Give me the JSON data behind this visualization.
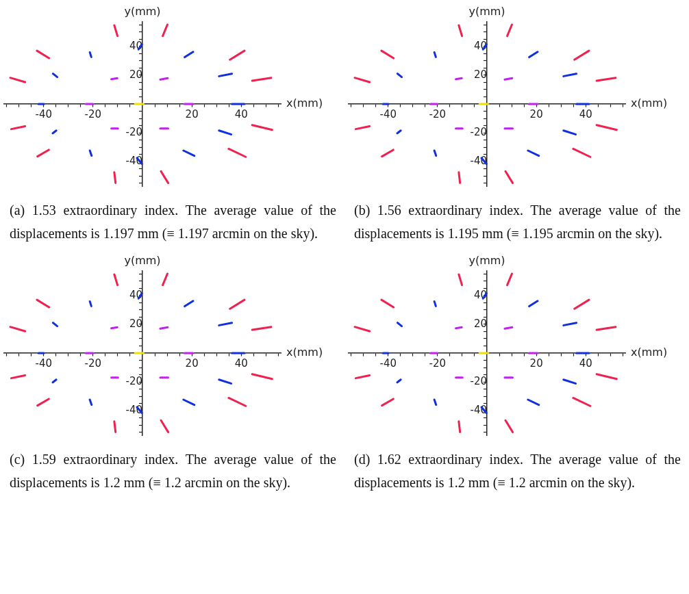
{
  "chart_data": [
    {
      "type": "line",
      "xlabel": "x(mm)",
      "ylabel": "y(mm)",
      "xlim": [
        -56,
        56
      ],
      "ylim": [
        -57,
        57
      ],
      "xticks": [
        {
          "value": -55,
          "label": null
        },
        {
          "value": -50,
          "label": null
        },
        {
          "value": -45,
          "label": null
        },
        -40,
        {
          "value": -35,
          "label": null
        },
        {
          "value": -30,
          "label": null
        },
        {
          "value": -25,
          "label": null
        },
        -20,
        {
          "value": -15,
          "label": null
        },
        {
          "value": -10,
          "label": null
        },
        {
          "value": -5,
          "label": null
        },
        {
          "value": 5,
          "label": null
        },
        {
          "value": 10,
          "label": null
        },
        {
          "value": 15,
          "label": null
        },
        20,
        {
          "value": 25,
          "label": null
        },
        {
          "value": 30,
          "label": null
        },
        {
          "value": 35,
          "label": null
        },
        40,
        {
          "value": 45,
          "label": null
        },
        {
          "value": 50,
          "label": null
        },
        {
          "value": 55,
          "label": null
        }
      ],
      "yticks": [
        {
          "value": -55,
          "label": null
        },
        {
          "value": -50,
          "label": null
        },
        {
          "value": -45,
          "label": null
        },
        -40,
        {
          "value": -35,
          "label": null
        },
        {
          "value": -30,
          "label": null
        },
        {
          "value": -25,
          "label": null
        },
        -20,
        {
          "value": -15,
          "label": null
        },
        {
          "value": -10,
          "label": null
        },
        {
          "value": -5,
          "label": null
        },
        {
          "value": 5,
          "label": null
        },
        {
          "value": 10,
          "label": null
        },
        {
          "value": 15,
          "label": null
        },
        20,
        {
          "value": 25,
          "label": null
        },
        {
          "value": 30,
          "label": null
        },
        {
          "value": 35,
          "label": null
        },
        40,
        {
          "value": 45,
          "label": null
        },
        {
          "value": 50,
          "label": null
        },
        {
          "value": 55,
          "label": null
        }
      ],
      "series": [
        {
          "color": "#f0204f",
          "x": [
            -11.4,
            -10.1,
            null,
            8.2,
            10.1,
            null,
            -42.7,
            -37.8,
            null,
            35.4,
            41.3,
            null,
            -53.5,
            -47.5,
            null,
            44.4,
            52.1,
            null,
            -53.1,
            -47.5,
            null,
            44.4,
            52.5,
            null,
            -42.5,
            -37.9,
            null,
            34.9,
            41.8,
            null,
            -11.4,
            -10.9,
            null,
            7.5,
            10.4
          ],
          "values": [
            54.6,
            47.2,
            null,
            47.2,
            55.1,
            null,
            37.0,
            31.8,
            null,
            30.8,
            37.0,
            null,
            18.2,
            15.2,
            null,
            16.1,
            18.2,
            null,
            -17.4,
            -15.4,
            null,
            -14.6,
            -17.9,
            null,
            -36.4,
            -31.8,
            null,
            -31.1,
            -36.7,
            null,
            -47.4,
            -54.8,
            null,
            -46.7,
            -54.8
          ]
        },
        {
          "color": "#1030e0",
          "x": [
            -21.3,
            -20.7,
            null,
            -1.6,
            -0.2,
            null,
            17.1,
            20.5,
            null,
            -36.2,
            -34.5,
            null,
            31.0,
            36.2,
            null,
            -42.1,
            -39.9,
            null,
            36.2,
            41.3,
            null,
            -36.3,
            -34.9,
            null,
            31.0,
            35.9,
            null,
            -21.3,
            -20.6,
            null,
            16.6,
            21.0,
            null,
            -2.2,
            -0.2
          ],
          "values": [
            35.9,
            32.6,
            null,
            37.9,
            41.5,
            null,
            32.5,
            36.2,
            null,
            21.1,
            18.7,
            null,
            19.3,
            21.0,
            null,
            0,
            0,
            null,
            0,
            0,
            null,
            -20.3,
            -18.4,
            null,
            -18.4,
            -21.1,
            null,
            -32.3,
            -35.9,
            null,
            -32.3,
            -35.9,
            null,
            -37.5,
            -41.6
          ]
        },
        {
          "color": "#c020f0",
          "x": [
            -12.6,
            -10.2,
            null,
            7.2,
            10.2,
            null,
            -22.9,
            -20.0,
            null,
            17.0,
            20.5,
            null,
            -12.6,
            -9.9,
            null,
            7.2,
            10.4
          ],
          "values": [
            17.2,
            17.9,
            null,
            17.0,
            17.9,
            null,
            0,
            0,
            null,
            0,
            0,
            null,
            -17.0,
            -17.0,
            null,
            -17.0,
            -17.0
          ]
        },
        {
          "color": "#f0e000",
          "x": [
            -3.0,
            0.4
          ],
          "values": [
            0,
            0
          ]
        }
      ],
      "annotations": [
        "(a) 1.53 extraordinary index. The average value of the displacements is 1.197 mm (≡ 1.197 arcmin on the sky)."
      ]
    },
    {
      "type": "line",
      "xlabel": "x(mm)",
      "ylabel": "y(mm)",
      "xlim": [
        -56,
        56
      ],
      "ylim": [
        -57,
        57
      ],
      "xticks": [
        {
          "value": -55,
          "label": null
        },
        {
          "value": -50,
          "label": null
        },
        {
          "value": -45,
          "label": null
        },
        -40,
        {
          "value": -35,
          "label": null
        },
        {
          "value": -30,
          "label": null
        },
        {
          "value": -25,
          "label": null
        },
        -20,
        {
          "value": -15,
          "label": null
        },
        {
          "value": -10,
          "label": null
        },
        {
          "value": -5,
          "label": null
        },
        {
          "value": 5,
          "label": null
        },
        {
          "value": 10,
          "label": null
        },
        {
          "value": 15,
          "label": null
        },
        20,
        {
          "value": 25,
          "label": null
        },
        {
          "value": 30,
          "label": null
        },
        {
          "value": 35,
          "label": null
        },
        40,
        {
          "value": 45,
          "label": null
        },
        {
          "value": 50,
          "label": null
        },
        {
          "value": 55,
          "label": null
        }
      ],
      "yticks": [
        {
          "value": -55,
          "label": null
        },
        {
          "value": -50,
          "label": null
        },
        {
          "value": -45,
          "label": null
        },
        -40,
        {
          "value": -35,
          "label": null
        },
        {
          "value": -30,
          "label": null
        },
        {
          "value": -25,
          "label": null
        },
        -20,
        {
          "value": -15,
          "label": null
        },
        {
          "value": -10,
          "label": null
        },
        {
          "value": -5,
          "label": null
        },
        {
          "value": 5,
          "label": null
        },
        {
          "value": 10,
          "label": null
        },
        {
          "value": 15,
          "label": null
        },
        20,
        {
          "value": 25,
          "label": null
        },
        {
          "value": 30,
          "label": null
        },
        {
          "value": 35,
          "label": null
        },
        40,
        {
          "value": 45,
          "label": null
        },
        {
          "value": 50,
          "label": null
        },
        {
          "value": 55,
          "label": null
        }
      ],
      "series": [
        {
          "color": "#f0204f",
          "x": [
            -11.4,
            -10.1,
            null,
            8.2,
            10.1,
            null,
            -42.7,
            -37.8,
            null,
            35.4,
            41.3,
            null,
            -53.5,
            -47.5,
            null,
            44.4,
            52.1,
            null,
            -53.1,
            -47.5,
            null,
            44.4,
            52.5,
            null,
            -42.5,
            -37.9,
            null,
            34.9,
            41.8,
            null,
            -11.4,
            -10.9,
            null,
            7.5,
            10.4
          ],
          "values": [
            54.6,
            47.2,
            null,
            47.2,
            55.1,
            null,
            37.0,
            31.8,
            null,
            30.8,
            37.0,
            null,
            18.2,
            15.2,
            null,
            16.1,
            18.2,
            null,
            -17.4,
            -15.4,
            null,
            -14.6,
            -17.9,
            null,
            -36.4,
            -31.8,
            null,
            -31.1,
            -36.7,
            null,
            -47.4,
            -54.8,
            null,
            -46.7,
            -54.8
          ]
        },
        {
          "color": "#1030e0",
          "x": [
            -21.3,
            -20.7,
            null,
            -1.6,
            -0.2,
            null,
            17.1,
            20.5,
            null,
            -36.2,
            -34.5,
            null,
            31.0,
            36.2,
            null,
            -42.1,
            -39.9,
            null,
            36.2,
            41.3,
            null,
            -36.3,
            -34.9,
            null,
            31.0,
            35.9,
            null,
            -21.3,
            -20.6,
            null,
            16.6,
            21.0,
            null,
            -2.2,
            -0.2
          ],
          "values": [
            35.9,
            32.6,
            null,
            37.9,
            41.5,
            null,
            32.5,
            36.2,
            null,
            21.1,
            18.7,
            null,
            19.3,
            21.0,
            null,
            0,
            0,
            null,
            0,
            0,
            null,
            -20.3,
            -18.4,
            null,
            -18.4,
            -21.1,
            null,
            -32.3,
            -35.9,
            null,
            -32.3,
            -35.9,
            null,
            -37.5,
            -41.6
          ]
        },
        {
          "color": "#c020f0",
          "x": [
            -12.6,
            -10.2,
            null,
            7.2,
            10.2,
            null,
            -22.9,
            -20.0,
            null,
            17.0,
            20.5,
            null,
            -12.6,
            -9.9,
            null,
            7.2,
            10.4
          ],
          "values": [
            17.2,
            17.9,
            null,
            17.0,
            17.9,
            null,
            0,
            0,
            null,
            0,
            0,
            null,
            -17.0,
            -17.0,
            null,
            -17.0,
            -17.0
          ]
        },
        {
          "color": "#f0e000",
          "x": [
            -3.0,
            0.4
          ],
          "values": [
            0,
            0
          ]
        }
      ],
      "annotations": [
        "(b) 1.56 extraordinary index. The average value of the displacements is 1.195 mm (≡ 1.195 arcmin on the sky)."
      ]
    },
    {
      "type": "line",
      "xlabel": "x(mm)",
      "ylabel": "y(mm)",
      "xlim": [
        -56,
        56
      ],
      "ylim": [
        -57,
        57
      ],
      "xticks": [
        {
          "value": -55,
          "label": null
        },
        {
          "value": -50,
          "label": null
        },
        {
          "value": -45,
          "label": null
        },
        -40,
        {
          "value": -35,
          "label": null
        },
        {
          "value": -30,
          "label": null
        },
        {
          "value": -25,
          "label": null
        },
        -20,
        {
          "value": -15,
          "label": null
        },
        {
          "value": -10,
          "label": null
        },
        {
          "value": -5,
          "label": null
        },
        {
          "value": 5,
          "label": null
        },
        {
          "value": 10,
          "label": null
        },
        {
          "value": 15,
          "label": null
        },
        20,
        {
          "value": 25,
          "label": null
        },
        {
          "value": 30,
          "label": null
        },
        {
          "value": 35,
          "label": null
        },
        40,
        {
          "value": 45,
          "label": null
        },
        {
          "value": 50,
          "label": null
        },
        {
          "value": 55,
          "label": null
        }
      ],
      "yticks": [
        {
          "value": -55,
          "label": null
        },
        {
          "value": -50,
          "label": null
        },
        {
          "value": -45,
          "label": null
        },
        -40,
        {
          "value": -35,
          "label": null
        },
        {
          "value": -30,
          "label": null
        },
        {
          "value": -25,
          "label": null
        },
        -20,
        {
          "value": -15,
          "label": null
        },
        {
          "value": -10,
          "label": null
        },
        {
          "value": -5,
          "label": null
        },
        {
          "value": 5,
          "label": null
        },
        {
          "value": 10,
          "label": null
        },
        {
          "value": 15,
          "label": null
        },
        20,
        {
          "value": 25,
          "label": null
        },
        {
          "value": 30,
          "label": null
        },
        {
          "value": 35,
          "label": null
        },
        40,
        {
          "value": 45,
          "label": null
        },
        {
          "value": 50,
          "label": null
        },
        {
          "value": 55,
          "label": null
        }
      ],
      "series": [
        {
          "color": "#f0204f",
          "x": [
            -11.4,
            -10.1,
            null,
            8.2,
            10.1,
            null,
            -42.7,
            -37.8,
            null,
            35.4,
            41.3,
            null,
            -53.5,
            -47.5,
            null,
            44.4,
            52.1,
            null,
            -53.1,
            -47.5,
            null,
            44.4,
            52.5,
            null,
            -42.5,
            -37.9,
            null,
            34.9,
            41.8,
            null,
            -11.4,
            -10.9,
            null,
            7.5,
            10.4
          ],
          "values": [
            54.6,
            47.2,
            null,
            47.2,
            55.1,
            null,
            37.0,
            31.8,
            null,
            30.8,
            37.0,
            null,
            18.2,
            15.2,
            null,
            16.1,
            18.2,
            null,
            -17.4,
            -15.4,
            null,
            -14.6,
            -17.9,
            null,
            -36.4,
            -31.8,
            null,
            -31.1,
            -36.7,
            null,
            -47.4,
            -54.8,
            null,
            -46.7,
            -54.8
          ]
        },
        {
          "color": "#1030e0",
          "x": [
            -21.3,
            -20.7,
            null,
            -1.6,
            -0.2,
            null,
            17.1,
            20.5,
            null,
            -36.2,
            -34.5,
            null,
            31.0,
            36.2,
            null,
            -42.1,
            -39.9,
            null,
            36.2,
            41.3,
            null,
            -36.3,
            -34.9,
            null,
            31.0,
            35.9,
            null,
            -21.3,
            -20.6,
            null,
            16.6,
            21.0,
            null,
            -2.2,
            -0.2
          ],
          "values": [
            35.9,
            32.6,
            null,
            37.9,
            41.5,
            null,
            32.5,
            36.2,
            null,
            21.1,
            18.7,
            null,
            19.3,
            21.0,
            null,
            0,
            0,
            null,
            0,
            0,
            null,
            -20.3,
            -18.4,
            null,
            -18.4,
            -21.1,
            null,
            -32.3,
            -35.9,
            null,
            -32.3,
            -35.9,
            null,
            -37.5,
            -41.6
          ]
        },
        {
          "color": "#c020f0",
          "x": [
            -12.6,
            -10.2,
            null,
            7.2,
            10.2,
            null,
            -22.9,
            -20.0,
            null,
            17.0,
            20.5,
            null,
            -12.6,
            -9.9,
            null,
            7.2,
            10.4
          ],
          "values": [
            17.2,
            17.9,
            null,
            17.0,
            17.9,
            null,
            0,
            0,
            null,
            0,
            0,
            null,
            -17.0,
            -17.0,
            null,
            -17.0,
            -17.0
          ]
        },
        {
          "color": "#f0e000",
          "x": [
            -3.0,
            0.4
          ],
          "values": [
            0,
            0
          ]
        }
      ],
      "annotations": [
        "(c) 1.59 extraordinary index. The average value of the displacements is 1.2 mm (≡ 1.2 arcmin on the sky)."
      ]
    },
    {
      "type": "line",
      "xlabel": "x(mm)",
      "ylabel": "y(mm)",
      "xlim": [
        -56,
        56
      ],
      "ylim": [
        -57,
        57
      ],
      "xticks": [
        {
          "value": -55,
          "label": null
        },
        {
          "value": -50,
          "label": null
        },
        {
          "value": -45,
          "label": null
        },
        -40,
        {
          "value": -35,
          "label": null
        },
        {
          "value": -30,
          "label": null
        },
        {
          "value": -25,
          "label": null
        },
        -20,
        {
          "value": -15,
          "label": null
        },
        {
          "value": -10,
          "label": null
        },
        {
          "value": -5,
          "label": null
        },
        {
          "value": 5,
          "label": null
        },
        {
          "value": 10,
          "label": null
        },
        {
          "value": 15,
          "label": null
        },
        20,
        {
          "value": 25,
          "label": null
        },
        {
          "value": 30,
          "label": null
        },
        {
          "value": 35,
          "label": null
        },
        40,
        {
          "value": 45,
          "label": null
        },
        {
          "value": 50,
          "label": null
        },
        {
          "value": 55,
          "label": null
        }
      ],
      "yticks": [
        {
          "value": -55,
          "label": null
        },
        {
          "value": -50,
          "label": null
        },
        {
          "value": -45,
          "label": null
        },
        -40,
        {
          "value": -35,
          "label": null
        },
        {
          "value": -30,
          "label": null
        },
        {
          "value": -25,
          "label": null
        },
        -20,
        {
          "value": -15,
          "label": null
        },
        {
          "value": -10,
          "label": null
        },
        {
          "value": -5,
          "label": null
        },
        {
          "value": 5,
          "label": null
        },
        {
          "value": 10,
          "label": null
        },
        {
          "value": 15,
          "label": null
        },
        20,
        {
          "value": 25,
          "label": null
        },
        {
          "value": 30,
          "label": null
        },
        {
          "value": 35,
          "label": null
        },
        40,
        {
          "value": 45,
          "label": null
        },
        {
          "value": 50,
          "label": null
        },
        {
          "value": 55,
          "label": null
        }
      ],
      "series": [
        {
          "color": "#f0204f",
          "x": [
            -11.4,
            -10.1,
            null,
            8.2,
            10.1,
            null,
            -42.7,
            -37.8,
            null,
            35.4,
            41.3,
            null,
            -53.5,
            -47.5,
            null,
            44.4,
            52.1,
            null,
            -53.1,
            -47.5,
            null,
            44.4,
            52.5,
            null,
            -42.5,
            -37.9,
            null,
            34.9,
            41.8,
            null,
            -11.4,
            -10.9,
            null,
            7.5,
            10.4
          ],
          "values": [
            54.6,
            47.2,
            null,
            47.2,
            55.1,
            null,
            37.0,
            31.8,
            null,
            30.8,
            37.0,
            null,
            18.2,
            15.2,
            null,
            16.1,
            18.2,
            null,
            -17.4,
            -15.4,
            null,
            -14.6,
            -17.9,
            null,
            -36.4,
            -31.8,
            null,
            -31.1,
            -36.7,
            null,
            -47.4,
            -54.8,
            null,
            -46.7,
            -54.8
          ]
        },
        {
          "color": "#1030e0",
          "x": [
            -21.3,
            -20.7,
            null,
            -1.6,
            -0.2,
            null,
            17.1,
            20.5,
            null,
            -36.2,
            -34.5,
            null,
            31.0,
            36.2,
            null,
            -42.1,
            -39.9,
            null,
            36.2,
            41.3,
            null,
            -36.3,
            -34.9,
            null,
            31.0,
            35.9,
            null,
            -21.3,
            -20.6,
            null,
            16.6,
            21.0,
            null,
            -2.2,
            -0.2
          ],
          "values": [
            35.9,
            32.6,
            null,
            37.9,
            41.5,
            null,
            32.5,
            36.2,
            null,
            21.1,
            18.7,
            null,
            19.3,
            21.0,
            null,
            0,
            0,
            null,
            0,
            0,
            null,
            -20.3,
            -18.4,
            null,
            -18.4,
            -21.1,
            null,
            -32.3,
            -35.9,
            null,
            -32.3,
            -35.9,
            null,
            -37.5,
            -41.6
          ]
        },
        {
          "color": "#c020f0",
          "x": [
            -12.6,
            -10.2,
            null,
            7.2,
            10.2,
            null,
            -22.9,
            -20.0,
            null,
            17.0,
            20.5,
            null,
            -12.6,
            -9.9,
            null,
            7.2,
            10.4
          ],
          "values": [
            17.2,
            17.9,
            null,
            17.0,
            17.9,
            null,
            0,
            0,
            null,
            0,
            0,
            null,
            -17.0,
            -17.0,
            null,
            -17.0,
            -17.0
          ]
        },
        {
          "color": "#f0e000",
          "x": [
            -3.0,
            0.4
          ],
          "values": [
            0,
            0
          ]
        }
      ],
      "annotations": [
        "(d) 1.62 extraordinary index. The average value of the displacements is 1.2 mm (≡ 1.2 arcmin on the sky)."
      ]
    }
  ]
}
